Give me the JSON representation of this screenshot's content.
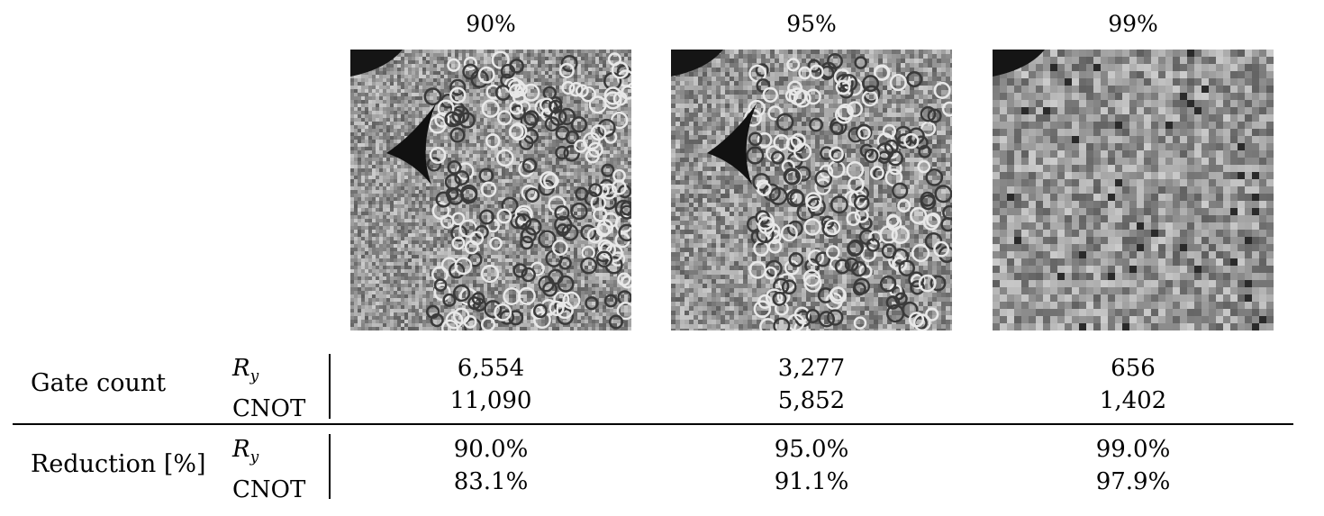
{
  "columns": [
    {
      "header": "90%",
      "ry": "6,554",
      "cnot": "11,090",
      "red_ry": "90.0%",
      "red_cnot": "83.1%",
      "retained_fraction": 0.9
    },
    {
      "header": "95%",
      "ry": "3,277",
      "cnot": "5,852",
      "red_ry": "95.0%",
      "red_cnot": "91.1%",
      "retained_fraction": 0.95
    },
    {
      "header": "99%",
      "ry": "656",
      "cnot": "1,402",
      "red_ry": "99.0%",
      "red_cnot": "97.9%",
      "retained_fraction": 0.99
    }
  ],
  "rows": {
    "gate_count": {
      "label": "Gate count",
      "sub_r": "R",
      "sub_r_index": "y",
      "sub_cnot": "CNOT"
    },
    "reduction": {
      "label": "Reduction [%]",
      "sub_r": "R",
      "sub_r_index": "y",
      "sub_cnot": "CNOT"
    }
  },
  "image_description_icon": "grayscale-microscopy-image"
}
